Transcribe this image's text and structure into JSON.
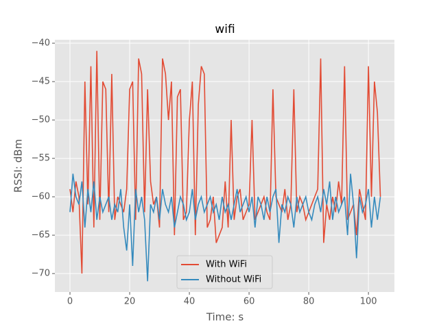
{
  "chart_data": {
    "type": "line",
    "title": "wifi",
    "xlabel": "Time: s",
    "ylabel": "RSSI: dBm",
    "x": [
      0,
      1,
      2,
      3,
      4,
      5,
      6,
      7,
      8,
      9,
      10,
      11,
      12,
      13,
      14,
      15,
      16,
      17,
      18,
      19,
      20,
      21,
      22,
      23,
      24,
      25,
      26,
      27,
      28,
      29,
      30,
      31,
      32,
      33,
      34,
      35,
      36,
      37,
      38,
      39,
      40,
      41,
      42,
      43,
      44,
      45,
      46,
      47,
      48,
      49,
      50,
      51,
      52,
      53,
      54,
      55,
      56,
      57,
      58,
      59,
      60,
      61,
      62,
      63,
      64,
      65,
      66,
      67,
      68,
      69,
      70,
      71,
      72,
      73,
      74,
      75,
      76,
      77,
      78,
      79,
      80,
      81,
      82,
      83,
      84,
      85,
      86,
      87,
      88,
      89,
      90,
      91,
      92,
      93,
      94,
      95,
      96,
      97,
      98,
      99,
      100,
      101,
      102,
      103,
      104
    ],
    "series": [
      {
        "name": "With WiFi",
        "color": "#E24A33",
        "values": [
          -59,
          -62,
          -58,
          -60,
          -70,
          -45,
          -61,
          -43,
          -64,
          -41,
          -63,
          -45,
          -46,
          -62,
          -44,
          -63,
          -60,
          -61,
          -62,
          -59,
          -46,
          -45,
          -63,
          -42,
          -44,
          -62,
          -46,
          -58,
          -61,
          -60,
          -64,
          -42,
          -44,
          -50,
          -45,
          -65,
          -47,
          -46,
          -63,
          -62,
          -50,
          -45,
          -65,
          -48,
          -43,
          -44,
          -64,
          -63,
          -60,
          -66,
          -65,
          -64,
          -58,
          -64,
          -50,
          -63,
          -60,
          -59,
          -63,
          -62,
          -61,
          -50,
          -63,
          -62,
          -61,
          -60,
          -62,
          -63,
          -46,
          -60,
          -61,
          -62,
          -59,
          -63,
          -61,
          -46,
          -62,
          -60,
          -61,
          -63,
          -62,
          -61,
          -60,
          -59,
          -42,
          -66,
          -61,
          -63,
          -60,
          -62,
          -58,
          -61,
          -43,
          -63,
          -62,
          -61,
          -65,
          -59,
          -61,
          -63,
          -43,
          -60,
          -45,
          -49,
          -60
        ]
      },
      {
        "name": "Without WiFi",
        "color": "#348ABD",
        "values": [
          -62,
          -57,
          -60,
          -61,
          -58,
          -64,
          -59,
          -62,
          -58,
          -63,
          -60,
          -62,
          -61,
          -60,
          -63,
          -61,
          -62,
          -59,
          -64,
          -67,
          -61,
          -69,
          -59,
          -62,
          -60,
          -63,
          -71,
          -61,
          -62,
          -60,
          -63,
          -59,
          -61,
          -62,
          -60,
          -64,
          -62,
          -60,
          -61,
          -63,
          -62,
          -59,
          -63,
          -61,
          -60,
          -62,
          -61,
          -60,
          -62,
          -61,
          -63,
          -60,
          -62,
          -61,
          -63,
          -61,
          -59,
          -62,
          -61,
          -60,
          -62,
          -60,
          -64,
          -60,
          -61,
          -63,
          -60,
          -62,
          -60,
          -59,
          -66,
          -61,
          -62,
          -60,
          -61,
          -64,
          -60,
          -62,
          -61,
          -60,
          -62,
          -63,
          -61,
          -60,
          -62,
          -59,
          -61,
          -58,
          -63,
          -60,
          -62,
          -61,
          -60,
          -65,
          -57,
          -61,
          -68,
          -60,
          -62,
          -61,
          -59,
          -64,
          -60,
          -63,
          -60
        ]
      }
    ],
    "xlim": [
      -5.06,
      108.7
    ],
    "ylim": [
      -72.4,
      -39.55
    ],
    "xticks": [
      0,
      20,
      40,
      60,
      80,
      100
    ],
    "yticks": [
      {
        "value": -70,
        "label": "−70"
      },
      {
        "value": -65,
        "label": "−65"
      },
      {
        "value": -60,
        "label": "−60"
      },
      {
        "value": -55,
        "label": "−55"
      },
      {
        "value": -50,
        "label": "−50"
      },
      {
        "value": -45,
        "label": "−45"
      },
      {
        "value": -40,
        "label": "−40"
      }
    ],
    "grid": true,
    "legend": "lower center"
  }
}
